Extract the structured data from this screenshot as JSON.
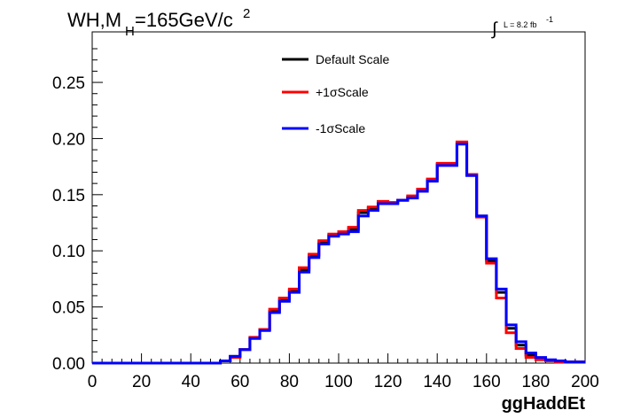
{
  "chart_data": {
    "type": "line",
    "title_main": "WH,M",
    "title_sub": "H",
    "title_rest": "=165GeV/c",
    "title_sup": "2",
    "lumi_text": "L = 8.2 fb",
    "lumi_sup": "-1",
    "xlabel": "ggHaddEt",
    "ylabel": "",
    "xlim": [
      0,
      200
    ],
    "ylim": [
      0,
      0.295
    ],
    "x_ticks": [
      "0",
      "20",
      "40",
      "60",
      "80",
      "100",
      "120",
      "140",
      "160",
      "180",
      "200"
    ],
    "y_ticks": [
      "0.00",
      "0.05",
      "0.10",
      "0.15",
      "0.20",
      "0.25"
    ],
    "bin_width": 4,
    "legend_position": "top-center",
    "series": [
      {
        "name": "Default Scale",
        "color": "#000000",
        "values": [
          0,
          0,
          0,
          0,
          0,
          0,
          0,
          0,
          0,
          0,
          0,
          0,
          0,
          0.002,
          0.006,
          0.012,
          0.022,
          0.03,
          0.046,
          0.057,
          0.065,
          0.083,
          0.096,
          0.108,
          0.114,
          0.116,
          0.119,
          0.134,
          0.138,
          0.143,
          0.143,
          0.145,
          0.148,
          0.154,
          0.163,
          0.177,
          0.177,
          0.196,
          0.168,
          0.131,
          0.091,
          0.063,
          0.031,
          0.016,
          0.007,
          0.004,
          0.002,
          0.001,
          0.001,
          0.001
        ]
      },
      {
        "name": "+1σScale",
        "color": "#ff0000",
        "values": [
          0,
          0,
          0,
          0,
          0,
          0,
          0,
          0,
          0,
          0,
          0,
          0,
          0,
          0.002,
          0.005,
          0.012,
          0.023,
          0.03,
          0.048,
          0.058,
          0.066,
          0.085,
          0.097,
          0.109,
          0.115,
          0.117,
          0.121,
          0.136,
          0.139,
          0.144,
          0.143,
          0.145,
          0.149,
          0.155,
          0.164,
          0.178,
          0.178,
          0.197,
          0.168,
          0.13,
          0.089,
          0.058,
          0.027,
          0.013,
          0.005,
          0.003,
          0.002,
          0.001,
          0.001,
          0.001
        ]
      },
      {
        "name": "-1σScale",
        "color": "#0000ff",
        "values": [
          0,
          0,
          0,
          0,
          0,
          0,
          0,
          0,
          0,
          0,
          0,
          0,
          0,
          0.002,
          0.006,
          0.012,
          0.022,
          0.029,
          0.045,
          0.055,
          0.063,
          0.081,
          0.094,
          0.106,
          0.113,
          0.115,
          0.117,
          0.131,
          0.136,
          0.142,
          0.142,
          0.145,
          0.147,
          0.153,
          0.162,
          0.176,
          0.176,
          0.195,
          0.167,
          0.131,
          0.093,
          0.066,
          0.034,
          0.019,
          0.009,
          0.005,
          0.003,
          0.002,
          0.001,
          0.001
        ]
      }
    ]
  }
}
